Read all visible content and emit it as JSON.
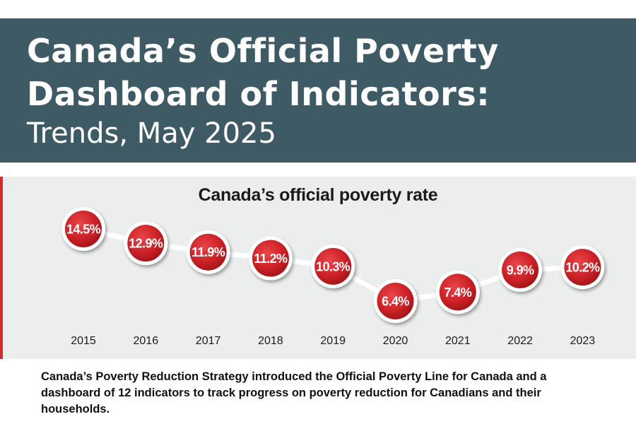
{
  "header": {
    "title_line1": "Canada’s Official Poverty",
    "title_line2": "Dashboard of Indicators:",
    "subtitle": "Trends, May 2025"
  },
  "colors": {
    "header_bg": "#3e5a65",
    "accent_red": "#d32a2e",
    "panel_bg": "#eceded"
  },
  "chart_data": {
    "type": "line",
    "title": "Canada’s official poverty rate",
    "categories": [
      "2015",
      "2016",
      "2017",
      "2018",
      "2019",
      "2020",
      "2021",
      "2022",
      "2023"
    ],
    "values": [
      14.5,
      12.9,
      11.9,
      11.2,
      10.3,
      6.4,
      7.4,
      9.9,
      10.2
    ],
    "data_labels": [
      "14.5%",
      "12.9%",
      "11.9%",
      "11.2%",
      "10.3%",
      "6.4%",
      "7.4%",
      "9.9%",
      "10.2%"
    ],
    "xlabel": "",
    "ylabel": "",
    "grid": false
  },
  "footer": {
    "text": "Canada’s Poverty Reduction Strategy introduced the Official Poverty Line for Canada and a dashboard of 12 indicators to track progress on poverty reduction for Canadians and their households."
  }
}
